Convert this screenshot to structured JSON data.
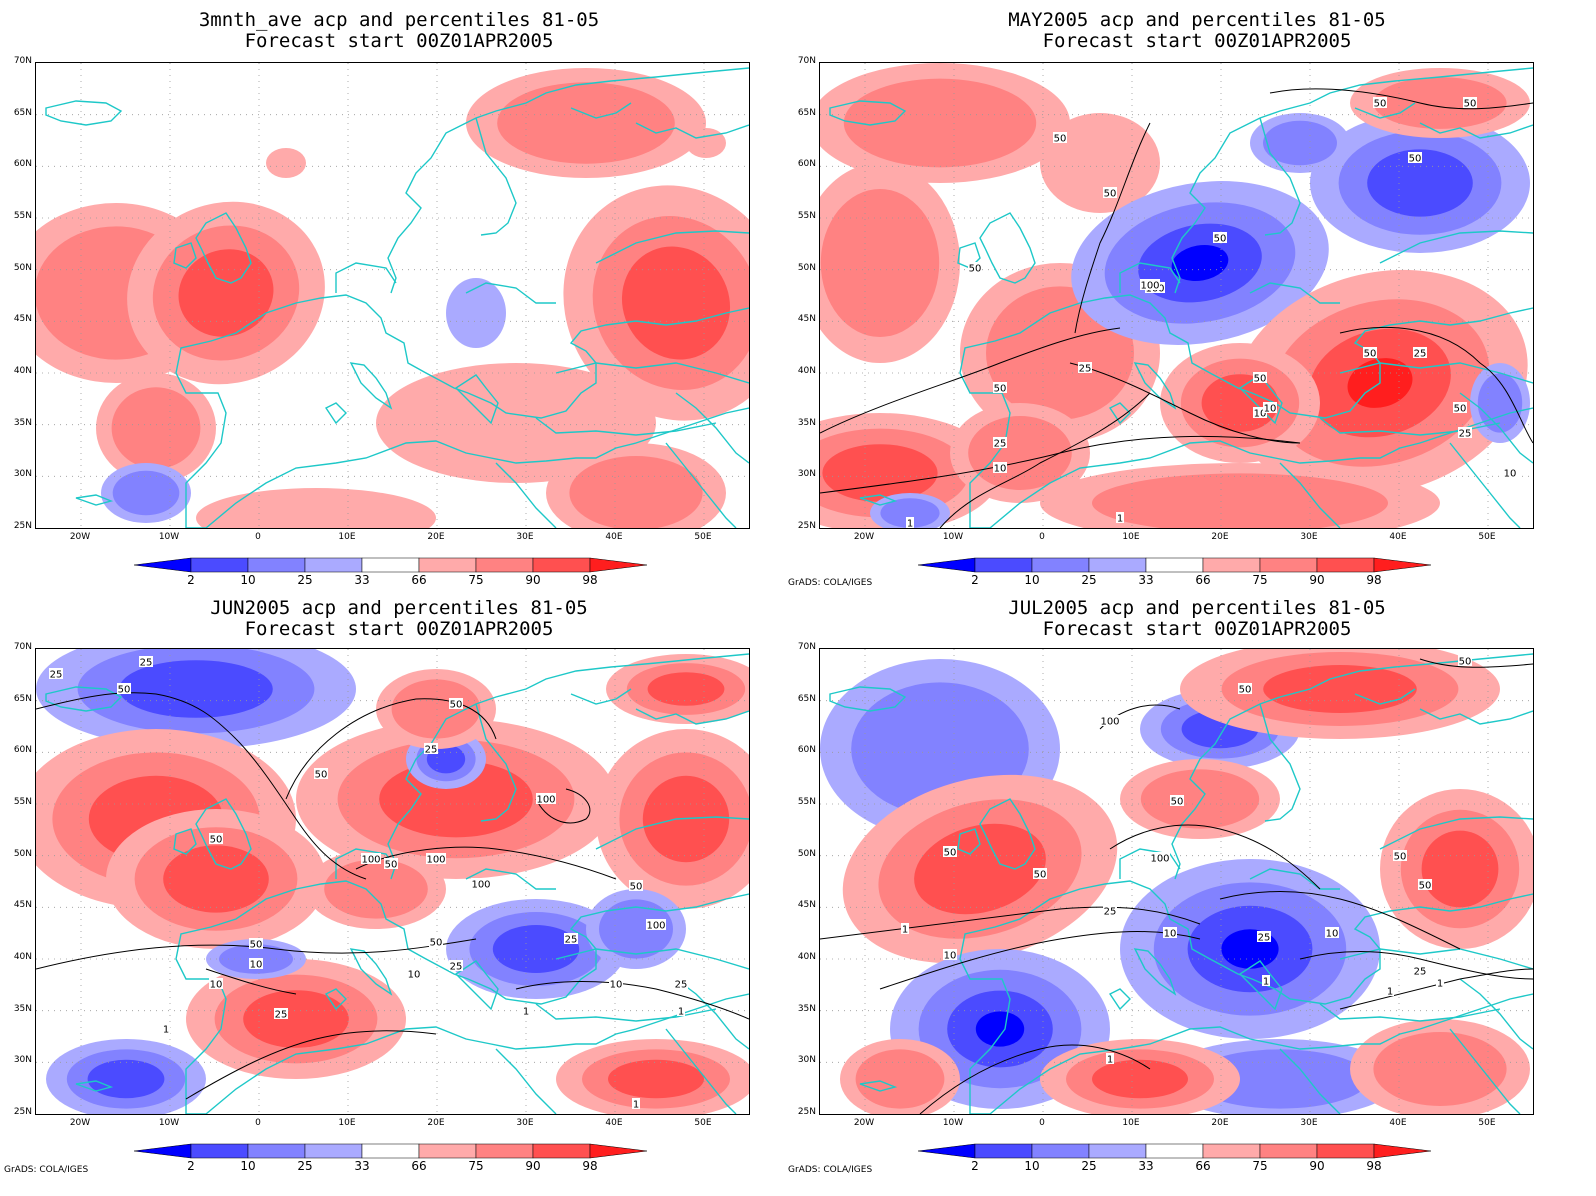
{
  "panels": [
    {
      "title_line1": "3mnth_ave acp and percentiles 81-05",
      "title_line2": "Forecast start 00Z01APR2005",
      "credit": "",
      "contour_labels": []
    },
    {
      "title_line1": "MAY2005 acp and percentiles 81-05",
      "title_line2": "Forecast start 00Z01APR2005",
      "credit": "GrADS: COLA/IGES",
      "contour_labels": [
        "50",
        "50",
        "50",
        "50",
        "50",
        "100",
        "50",
        "100",
        "50",
        "50",
        "25",
        "50",
        "10",
        "25",
        "50",
        "25",
        "10",
        "10",
        "1",
        "1",
        "50",
        "25",
        "10"
      ]
    },
    {
      "title_line1": "JUN2005 acp and percentiles 81-05",
      "title_line2": "Forecast start 00Z01APR2005",
      "credit": "GrADS: COLA/IGES",
      "contour_labels": [
        "25",
        "25",
        "50",
        "50",
        "50",
        "25",
        "50",
        "100",
        "50",
        "100",
        "100",
        "100",
        "50",
        "25",
        "50",
        "25",
        "10",
        "10",
        "25",
        "10",
        "50",
        "25",
        "100",
        "10",
        "25",
        "1",
        "1",
        "1",
        "1"
      ]
    },
    {
      "title_line1": "JUL2005 acp and percentiles 81-05",
      "title_line2": "Forecast start 00Z01APR2005",
      "credit": "GrADS: COLA/IGES",
      "contour_labels": [
        "50",
        "50",
        "100",
        "50",
        "50",
        "50",
        "100",
        "50",
        "50",
        "25",
        "10",
        "25",
        "10",
        "1",
        "25",
        "10",
        "1",
        "1",
        "1",
        "1"
      ]
    }
  ],
  "lat_labels": [
    "70N",
    "65N",
    "60N",
    "55N",
    "50N",
    "45N",
    "40N",
    "35N",
    "30N",
    "25N"
  ],
  "lon_labels": [
    "20W",
    "10W",
    "0",
    "10E",
    "20E",
    "30E",
    "40E",
    "50E"
  ],
  "colorbar_labels": [
    "2",
    "10",
    "25",
    "33",
    "66",
    "75",
    "90",
    "98"
  ],
  "colors": {
    "coast": "#1ec8c8",
    "contour": "#000000",
    "blue_dark": "#0000ff",
    "blue_mid": "#4b4bff",
    "blue_light": "#8282ff",
    "blue_pale": "#aaaaff",
    "red_pale": "#ffaaaa",
    "red_light": "#ff8282",
    "red_mid": "#ff5050",
    "red_dark": "#ff1e1e"
  }
}
